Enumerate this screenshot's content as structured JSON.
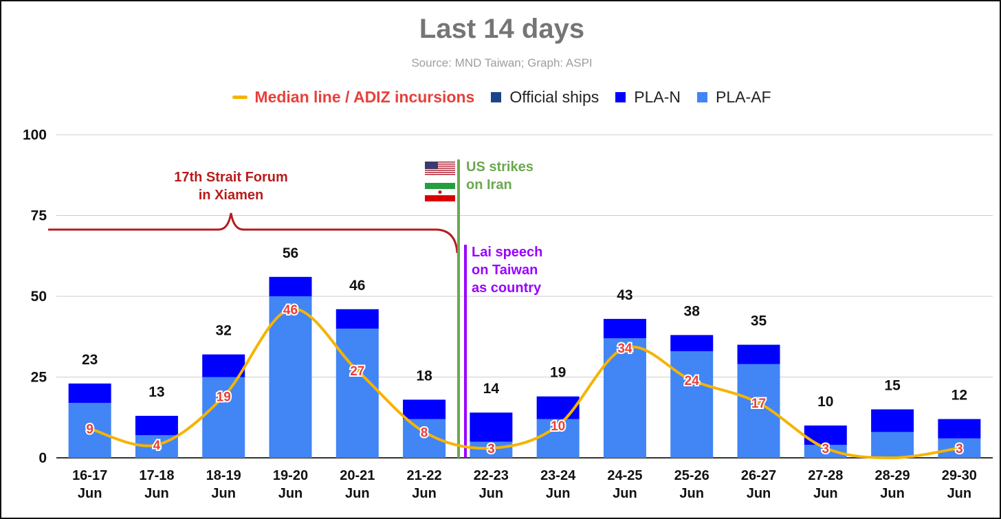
{
  "chart_data": {
    "type": "bar",
    "title": "Last 14 days",
    "subtitle": "Source: MND Taiwan; Graph: ASPI",
    "categories": [
      [
        "16-17",
        "Jun"
      ],
      [
        "17-18",
        "Jun"
      ],
      [
        "18-19",
        "Jun"
      ],
      [
        "19-20",
        "Jun"
      ],
      [
        "20-21",
        "Jun"
      ],
      [
        "21-22",
        "Jun"
      ],
      [
        "22-23",
        "Jun"
      ],
      [
        "23-24",
        "Jun"
      ],
      [
        "24-25",
        "Jun"
      ],
      [
        "25-26",
        "Jun"
      ],
      [
        "26-27",
        "Jun"
      ],
      [
        "27-28",
        "Jun"
      ],
      [
        "28-29",
        "Jun"
      ],
      [
        "29-30",
        "Jun"
      ]
    ],
    "series": [
      {
        "name": "PLA-AF",
        "color": "#4285f4",
        "values": [
          17,
          7,
          25,
          50,
          40,
          12,
          5,
          12,
          37,
          33,
          29,
          4,
          8,
          6
        ]
      },
      {
        "name": "PLA-N",
        "color": "#0000ff",
        "values": [
          6,
          6,
          7,
          6,
          6,
          6,
          9,
          7,
          6,
          5,
          6,
          6,
          7,
          6
        ]
      },
      {
        "name": "Official ships",
        "color": "#1c4587",
        "values": [
          0,
          0,
          0,
          0,
          0,
          0,
          0,
          0,
          0,
          0,
          0,
          0,
          0,
          0
        ]
      }
    ],
    "totals": [
      23,
      13,
      32,
      56,
      46,
      18,
      14,
      19,
      43,
      38,
      35,
      10,
      15,
      12
    ],
    "median_line": {
      "name": "Median line / ADIZ incursions",
      "color": "#f4b400",
      "label_color": "#e8403a",
      "values": [
        9,
        4,
        19,
        46,
        27,
        8,
        3,
        10,
        34,
        24,
        17,
        3,
        0,
        3
      ],
      "labels": [
        "9",
        "4",
        "19",
        "46",
        "27",
        "8",
        "3",
        "10",
        "34",
        "24",
        "17",
        "3",
        "",
        "3"
      ]
    },
    "ylim": [
      0,
      100
    ],
    "yticks": [
      0,
      25,
      50,
      75,
      100
    ],
    "grid": true,
    "legend_position": "top-center",
    "stacked": true,
    "annotations": [
      {
        "text_lines": [
          "17th Strait Forum",
          "in Xiamen"
        ],
        "color": "#b71c1c",
        "span_categories": [
          0,
          5
        ]
      },
      {
        "text_lines": [
          "US strikes",
          "on Iran"
        ],
        "color": "#6aa84f",
        "between_categories": [
          5,
          6
        ]
      },
      {
        "text_lines": [
          "Lai speech",
          "on Taiwan",
          "as country"
        ],
        "color": "#9900ff",
        "between_categories": [
          5,
          6
        ]
      }
    ]
  },
  "legend": [
    {
      "label": "Median line / ADIZ incursions",
      "kind": "line",
      "color": "#f4b400"
    },
    {
      "label": "Official ships",
      "kind": "square",
      "color": "#1c4587"
    },
    {
      "label": "PLA-N",
      "kind": "square",
      "color": "#0000ff"
    },
    {
      "label": "PLA-AF",
      "kind": "square",
      "color": "#4285f4"
    }
  ]
}
